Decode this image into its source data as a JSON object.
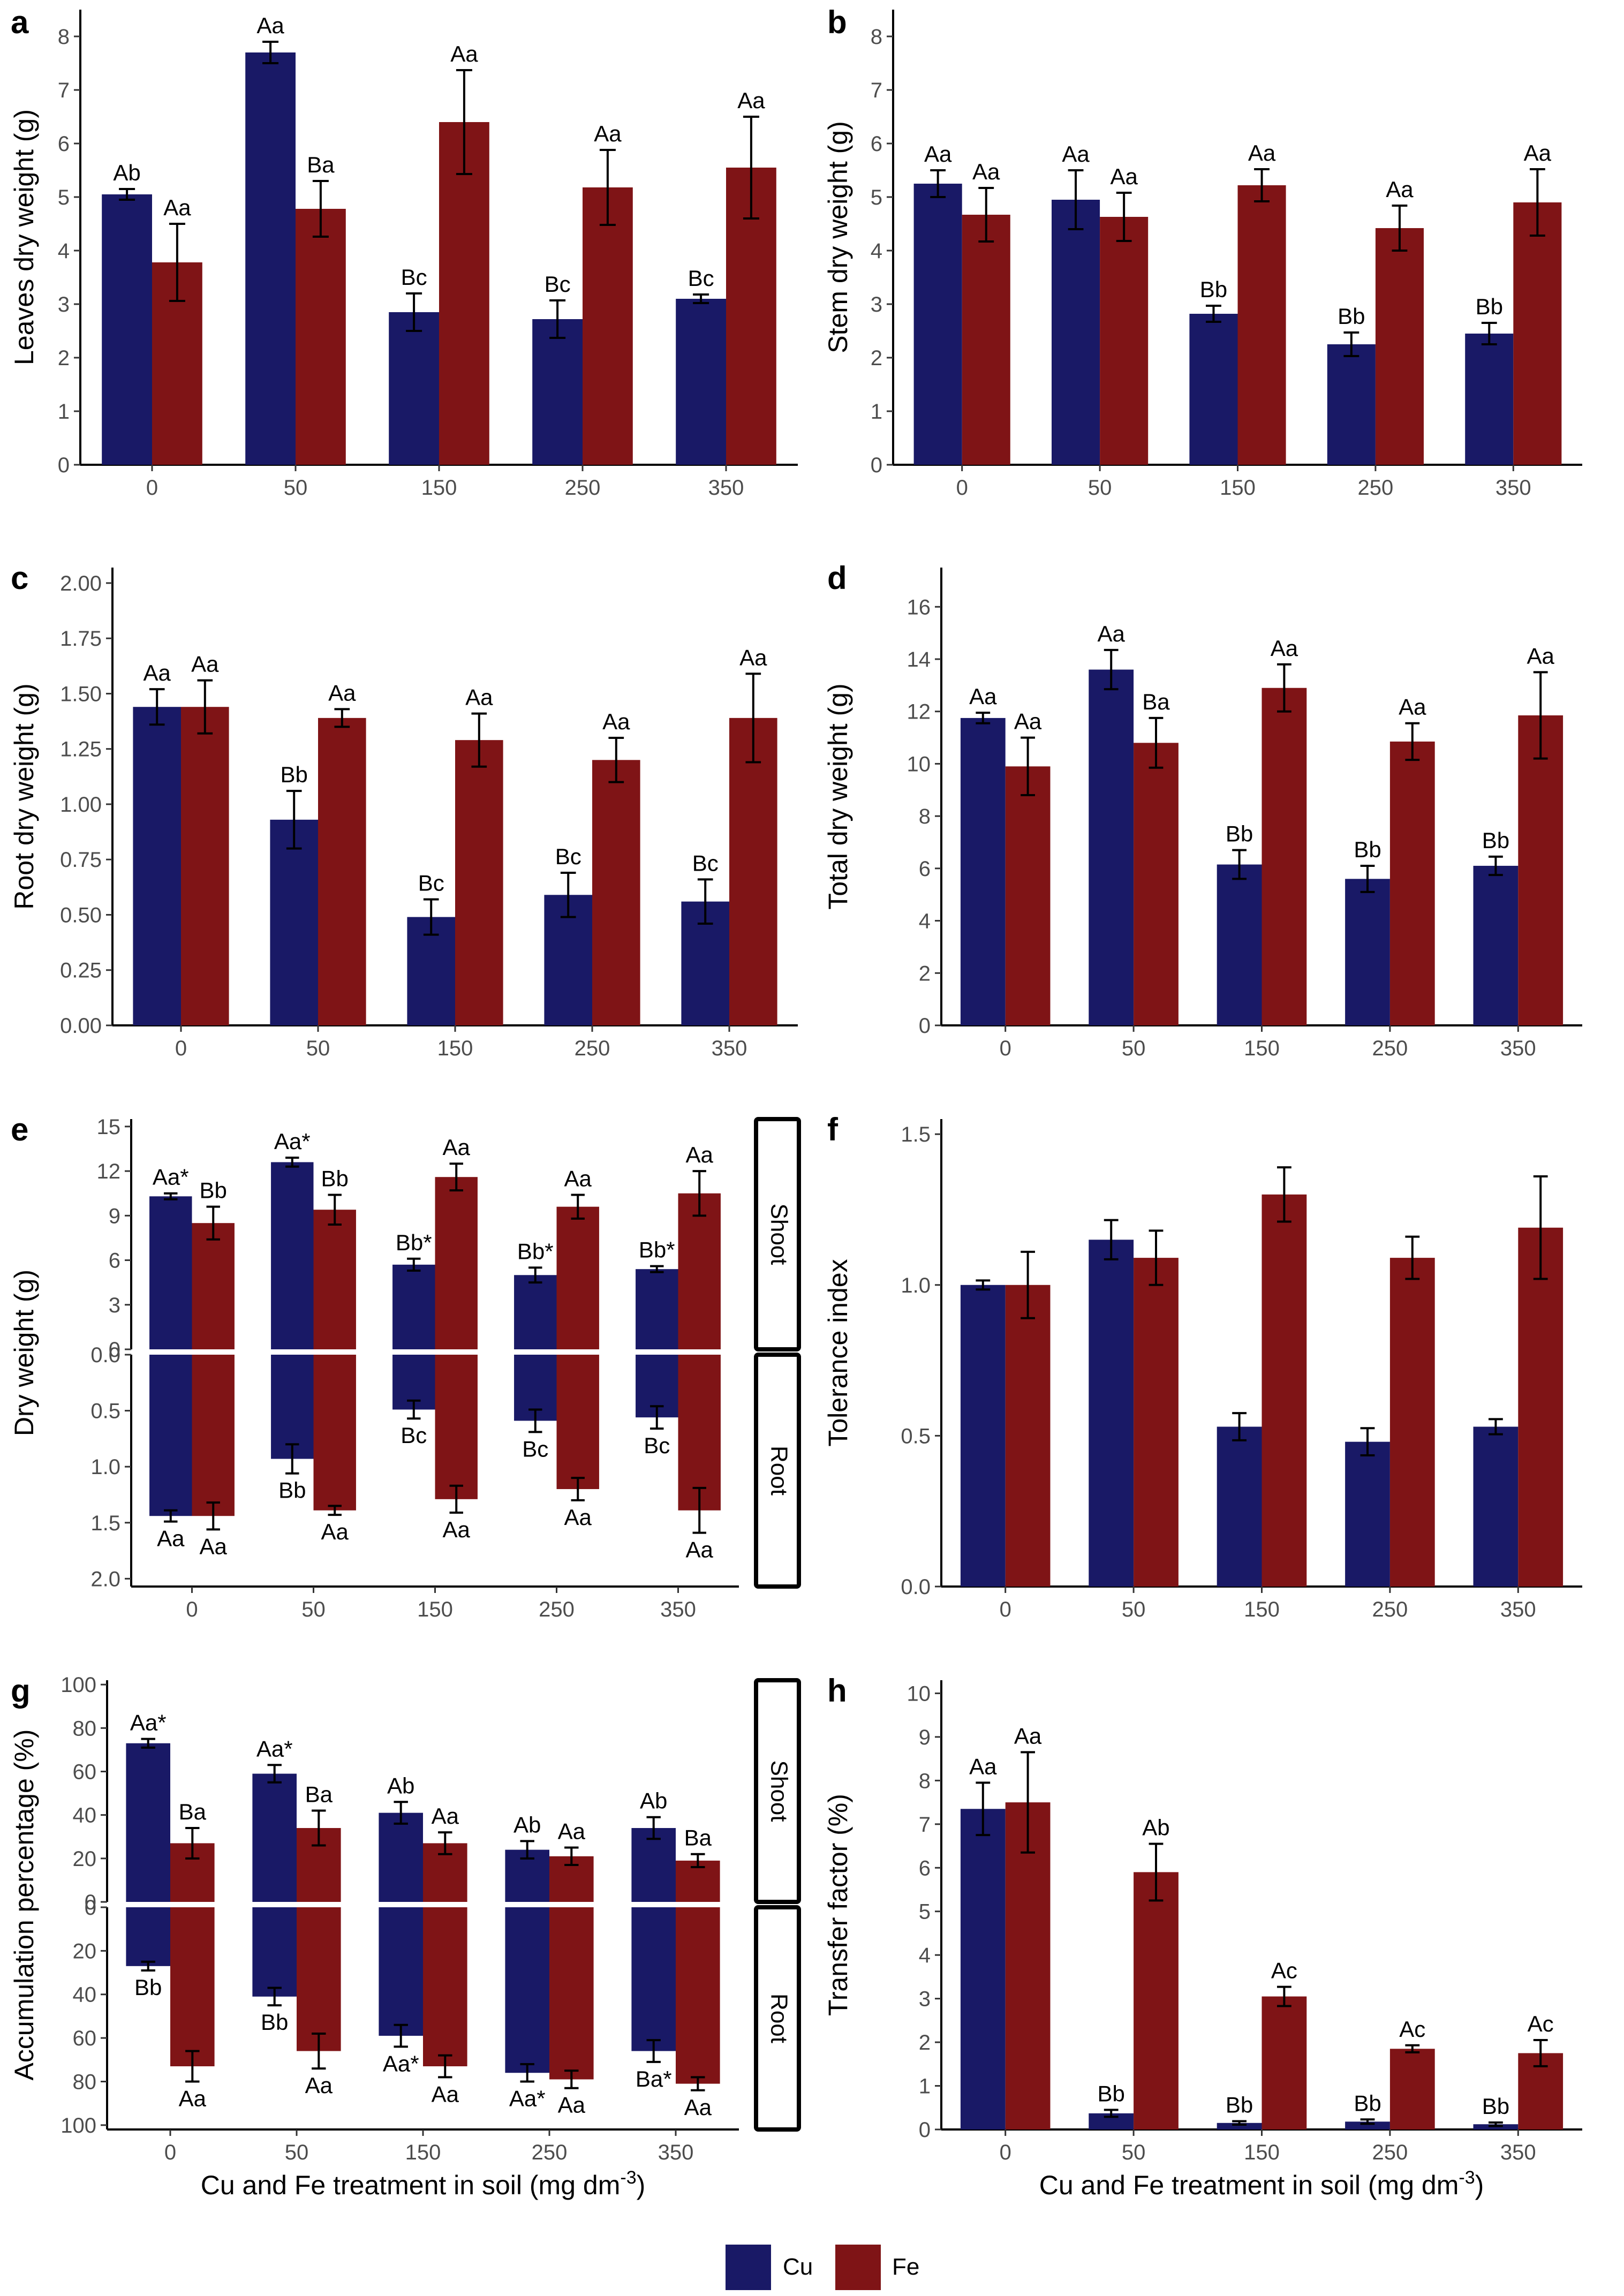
{
  "colors": {
    "Cu": "#191966",
    "Fe": "#7f1416",
    "error": "#000000"
  },
  "legend": {
    "cu_label": "Cu",
    "fe_label": "Fe"
  },
  "shared_x_title": {
    "left": {
      "main": "Cu and Fe treatment in soil (mg dm",
      "sup": "-3",
      "close": ")"
    },
    "right": {
      "main": "Cu and Fe treatment in soil (mg dm",
      "sup": "-3",
      "close": ")"
    }
  },
  "chart_data": [
    {
      "id": "a",
      "panel_label": "a",
      "type": "bar",
      "ylabel": "Leaves dry weight (g)",
      "ylim": [
        0,
        8.5
      ],
      "yticks": [
        0,
        1,
        2,
        3,
        4,
        5,
        6,
        7,
        8
      ],
      "ytick_labels": [
        "0",
        "1",
        "2",
        "3",
        "4",
        "5",
        "6",
        "7",
        "8"
      ],
      "categories": [
        "0",
        "50",
        "150",
        "250",
        "350"
      ],
      "series": [
        {
          "name": "Cu",
          "values": [
            5.05,
            7.7,
            2.85,
            2.72,
            3.1
          ],
          "errors": [
            0.1,
            0.2,
            0.35,
            0.35,
            0.08
          ],
          "labels": [
            "Ab",
            "Aa",
            "Bc",
            "Bc",
            "Bc"
          ]
        },
        {
          "name": "Fe",
          "values": [
            3.78,
            4.78,
            6.4,
            5.18,
            5.55
          ],
          "errors": [
            0.72,
            0.52,
            0.97,
            0.7,
            0.95
          ],
          "labels": [
            "Aa",
            "Ba",
            "Aa",
            "Aa",
            "Aa"
          ]
        }
      ]
    },
    {
      "id": "b",
      "panel_label": "b",
      "type": "bar",
      "ylabel": "Stem dry weight (g)",
      "ylim": [
        0,
        8.5
      ],
      "yticks": [
        0,
        1,
        2,
        3,
        4,
        5,
        6,
        7,
        8
      ],
      "ytick_labels": [
        "0",
        "1",
        "2",
        "3",
        "4",
        "5",
        "6",
        "7",
        "8"
      ],
      "categories": [
        "0",
        "50",
        "150",
        "250",
        "350"
      ],
      "series": [
        {
          "name": "Cu",
          "values": [
            5.25,
            4.95,
            2.82,
            2.25,
            2.45
          ],
          "errors": [
            0.25,
            0.55,
            0.15,
            0.22,
            0.2
          ],
          "labels": [
            "Aa",
            "Aa",
            "Bb",
            "Bb",
            "Bb"
          ]
        },
        {
          "name": "Fe",
          "values": [
            4.67,
            4.63,
            5.22,
            4.42,
            4.9
          ],
          "errors": [
            0.5,
            0.45,
            0.3,
            0.42,
            0.62
          ],
          "labels": [
            "Aa",
            "Aa",
            "Aa",
            "Aa",
            "Aa"
          ]
        }
      ]
    },
    {
      "id": "c",
      "panel_label": "c",
      "type": "bar",
      "ylabel": "Root dry weight (g)",
      "ylim": [
        0,
        2.07
      ],
      "yticks": [
        0,
        0.25,
        0.5,
        0.75,
        1,
        1.25,
        1.5,
        1.75,
        2
      ],
      "ytick_labels": [
        "0.00",
        "0.25",
        "0.50",
        "0.75",
        "1.00",
        "1.25",
        "1.50",
        "1.75",
        "2.00"
      ],
      "categories": [
        "0",
        "50",
        "150",
        "250",
        "350"
      ],
      "series": [
        {
          "name": "Cu",
          "values": [
            1.44,
            0.93,
            0.49,
            0.59,
            0.56
          ],
          "errors": [
            0.08,
            0.13,
            0.08,
            0.1,
            0.1
          ],
          "labels": [
            "Aa",
            "Bb",
            "Bc",
            "Bc",
            "Bc"
          ]
        },
        {
          "name": "Fe",
          "values": [
            1.44,
            1.39,
            1.29,
            1.2,
            1.39
          ],
          "errors": [
            0.12,
            0.04,
            0.12,
            0.1,
            0.2
          ],
          "labels": [
            "Aa",
            "Aa",
            "Aa",
            "Aa",
            "Aa"
          ]
        }
      ]
    },
    {
      "id": "d",
      "panel_label": "d",
      "type": "bar",
      "ylabel": "Total dry weight (g)",
      "ylim": [
        0,
        17.5
      ],
      "yticks": [
        0,
        2,
        4,
        6,
        8,
        10,
        12,
        14,
        16
      ],
      "ytick_labels": [
        "0",
        "2",
        "4",
        "6",
        "8",
        "10",
        "12",
        "14",
        "16"
      ],
      "categories": [
        "0",
        "50",
        "150",
        "250",
        "350"
      ],
      "series": [
        {
          "name": "Cu",
          "values": [
            11.75,
            13.6,
            6.15,
            5.6,
            6.1
          ],
          "errors": [
            0.2,
            0.75,
            0.55,
            0.5,
            0.35
          ],
          "labels": [
            "Aa",
            "Aa",
            "Bb",
            "Bb",
            "Bb"
          ]
        },
        {
          "name": "Fe",
          "values": [
            9.9,
            10.8,
            12.9,
            10.85,
            11.85
          ],
          "errors": [
            1.1,
            0.95,
            0.9,
            0.7,
            1.65
          ],
          "labels": [
            "Aa",
            "Ba",
            "Aa",
            "Aa",
            "Aa"
          ]
        }
      ]
    },
    {
      "id": "e",
      "panel_label": "e",
      "type": "bar",
      "ylabel": "Dry weight (g)",
      "categories": [
        "0",
        "50",
        "150",
        "250",
        "350"
      ],
      "facets": [
        {
          "name": "Shoot",
          "direction": "up",
          "ylim": [
            0,
            15.5
          ],
          "yticks": [
            0,
            3,
            6,
            9,
            12,
            15
          ],
          "ytick_labels": [
            "0",
            "3",
            "6",
            "9",
            "12",
            "15"
          ],
          "series": [
            {
              "name": "Cu",
              "values": [
                10.3,
                12.6,
                5.7,
                5.0,
                5.4
              ],
              "errors": [
                0.2,
                0.3,
                0.4,
                0.5,
                0.2
              ],
              "labels": [
                "Aa*",
                "Aa*",
                "Bb*",
                "Bb*",
                "Bb*"
              ]
            },
            {
              "name": "Fe",
              "values": [
                8.5,
                9.4,
                11.6,
                9.6,
                10.5
              ],
              "errors": [
                1.1,
                1.0,
                0.9,
                0.8,
                1.5
              ],
              "labels": [
                "Bb",
                "Bb",
                "Aa",
                "Aa",
                "Aa"
              ]
            }
          ]
        },
        {
          "name": "Root",
          "direction": "down",
          "ylim": [
            0,
            2.07
          ],
          "yticks": [
            0,
            0.5,
            1,
            1.5,
            2
          ],
          "ytick_labels": [
            "0.0",
            "0.5",
            "1.0",
            "1.5",
            "2.0"
          ],
          "series": [
            {
              "name": "Cu",
              "values": [
                1.44,
                0.93,
                0.49,
                0.59,
                0.56
              ],
              "errors": [
                0.05,
                0.13,
                0.08,
                0.1,
                0.1
              ],
              "labels": [
                "Aa",
                "Bb",
                "Bc",
                "Bc",
                "Bc"
              ]
            },
            {
              "name": "Fe",
              "values": [
                1.44,
                1.39,
                1.29,
                1.2,
                1.39
              ],
              "errors": [
                0.12,
                0.04,
                0.12,
                0.1,
                0.2
              ],
              "labels": [
                "Aa",
                "Aa",
                "Aa",
                "Aa",
                "Aa"
              ]
            }
          ]
        }
      ]
    },
    {
      "id": "f",
      "panel_label": "f",
      "type": "bar",
      "ylabel": "Tolerance index",
      "ylim": [
        0,
        1.55
      ],
      "yticks": [
        0,
        0.5,
        1,
        1.5
      ],
      "ytick_labels": [
        "0.0",
        "0.5",
        "1.0",
        "1.5"
      ],
      "categories": [
        "0",
        "50",
        "150",
        "250",
        "350"
      ],
      "series": [
        {
          "name": "Cu",
          "values": [
            1.0,
            1.15,
            0.53,
            0.48,
            0.53
          ],
          "errors": [
            0.015,
            0.065,
            0.045,
            0.045,
            0.025
          ],
          "labels": [
            "",
            "",
            "",
            "",
            ""
          ]
        },
        {
          "name": "Fe",
          "values": [
            1.0,
            1.09,
            1.3,
            1.09,
            1.19
          ],
          "errors": [
            0.11,
            0.09,
            0.09,
            0.07,
            0.17
          ],
          "labels": [
            "",
            "",
            "",
            "",
            ""
          ]
        }
      ]
    },
    {
      "id": "g",
      "panel_label": "g",
      "type": "bar",
      "ylabel": "Accumulation percentage (%)",
      "categories": [
        "0",
        "50",
        "150",
        "250",
        "350"
      ],
      "facets": [
        {
          "name": "Shoot",
          "direction": "up",
          "ylim": [
            0,
            102
          ],
          "yticks": [
            0,
            20,
            40,
            60,
            80,
            100
          ],
          "ytick_labels": [
            "0",
            "20",
            "40",
            "60",
            "80",
            "100"
          ],
          "series": [
            {
              "name": "Cu",
              "values": [
                73,
                59,
                41,
                24,
                34
              ],
              "errors": [
                2,
                4,
                5,
                4,
                5
              ],
              "labels": [
                "Aa*",
                "Aa*",
                "Ab",
                "Ab",
                "Ab"
              ]
            },
            {
              "name": "Fe",
              "values": [
                27,
                34,
                27,
                21,
                19
              ],
              "errors": [
                7,
                8,
                5,
                4,
                3
              ],
              "labels": [
                "Ba",
                "Ba",
                "Aa",
                "Aa",
                "Ba"
              ]
            }
          ]
        },
        {
          "name": "Root",
          "direction": "down",
          "ylim": [
            0,
            102
          ],
          "yticks": [
            0,
            20,
            40,
            60,
            80,
            100
          ],
          "ytick_labels": [
            "0",
            "20",
            "40",
            "60",
            "80",
            "100"
          ],
          "series": [
            {
              "name": "Cu",
              "values": [
                27,
                41,
                59,
                76,
                66
              ],
              "errors": [
                2,
                4,
                5,
                4,
                5
              ],
              "labels": [
                "Bb",
                "Bb",
                "Aa*",
                "Aa*",
                "Ba*"
              ]
            },
            {
              "name": "Fe",
              "values": [
                73,
                66,
                73,
                79,
                81
              ],
              "errors": [
                7,
                8,
                5,
                4,
                3
              ],
              "labels": [
                "Aa",
                "Aa",
                "Aa",
                "Aa",
                "Aa"
              ]
            }
          ]
        }
      ]
    },
    {
      "id": "h",
      "panel_label": "h",
      "type": "bar",
      "ylabel": "Transfer factor (%)",
      "ylim": [
        0,
        10.3
      ],
      "yticks": [
        0,
        1,
        2,
        3,
        4,
        5,
        6,
        7,
        8,
        9,
        10
      ],
      "ytick_labels": [
        "0",
        "1",
        "2",
        "3",
        "4",
        "5",
        "6",
        "7",
        "8",
        "9",
        "10"
      ],
      "categories": [
        "0",
        "50",
        "150",
        "250",
        "350"
      ],
      "series": [
        {
          "name": "Cu",
          "values": [
            7.35,
            0.37,
            0.15,
            0.18,
            0.12
          ],
          "errors": [
            0.6,
            0.08,
            0.04,
            0.05,
            0.04
          ],
          "labels": [
            "Aa",
            "Bb",
            "Bb",
            "Bb",
            "Bb"
          ]
        },
        {
          "name": "Fe",
          "values": [
            7.5,
            5.9,
            3.05,
            1.85,
            1.75
          ],
          "errors": [
            1.15,
            0.65,
            0.22,
            0.08,
            0.3
          ],
          "labels": [
            "Aa",
            "Ab",
            "Ac",
            "Ac",
            "Ac"
          ]
        }
      ]
    }
  ]
}
